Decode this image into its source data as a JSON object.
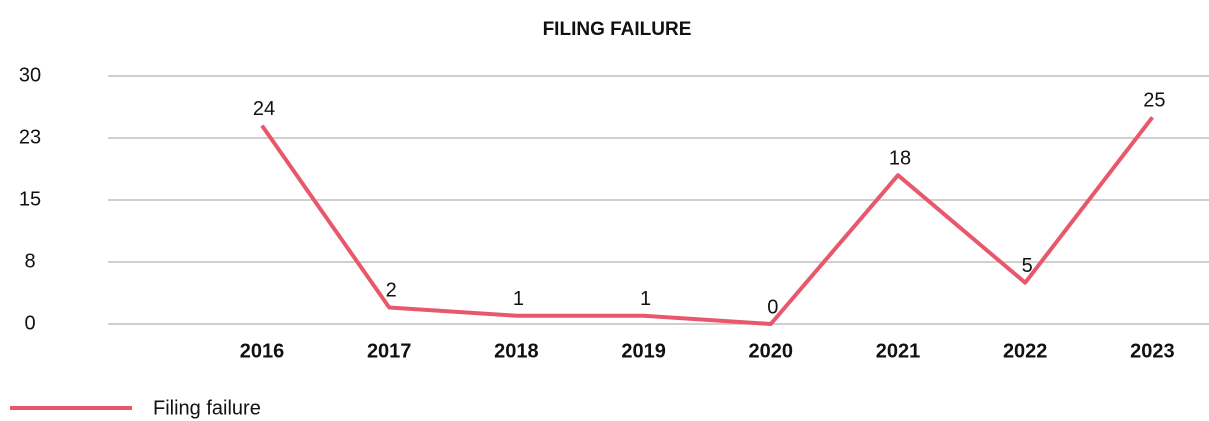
{
  "chart_data": {
    "type": "line",
    "title": "FILING FAILURE",
    "categories": [
      "2016",
      "2017",
      "2018",
      "2019",
      "2020",
      "2021",
      "2022",
      "2023"
    ],
    "series": [
      {
        "name": "Filing failure",
        "color": "#e8586b",
        "values": [
          24,
          2,
          1,
          1,
          0,
          18,
          5,
          25
        ]
      }
    ],
    "ylim": [
      0,
      30
    ],
    "yticks": [
      0,
      {
        "value": 7.5,
        "label": "8"
      },
      15,
      {
        "value": 22.5,
        "label": "23"
      },
      30
    ],
    "grid": true,
    "legend": "bottom-left"
  }
}
